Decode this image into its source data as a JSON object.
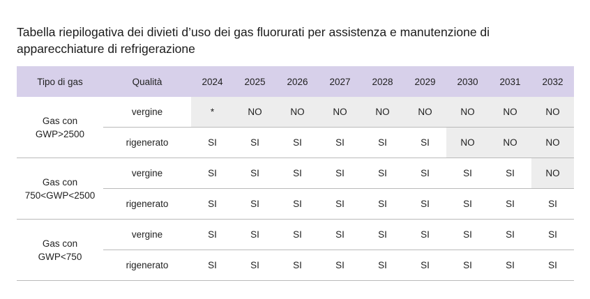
{
  "title_line1": "Tabella riepilogativa dei divieti d’uso dei gas fluorurati per assistenza e manutenzione di",
  "title_line2": "apparecchiature di refrigerazione",
  "header": {
    "type": "Tipo di gas",
    "quality": "Qualità",
    "years": [
      "2024",
      "2025",
      "2026",
      "2027",
      "2028",
      "2029",
      "2030",
      "2031",
      "2032"
    ]
  },
  "groups": [
    {
      "type_line1": "Gas con",
      "type_line2": "GWP>2500",
      "rows": [
        {
          "quality": "vergine",
          "values": [
            "*",
            "NO",
            "NO",
            "NO",
            "NO",
            "NO",
            "NO",
            "NO",
            "NO"
          ]
        },
        {
          "quality": "rigenerato",
          "values": [
            "SI",
            "SI",
            "SI",
            "SI",
            "SI",
            "SI",
            "NO",
            "NO",
            "NO"
          ]
        }
      ]
    },
    {
      "type_line1": "Gas con",
      "type_line2": "750<GWP<2500",
      "rows": [
        {
          "quality": "vergine",
          "values": [
            "SI",
            "SI",
            "SI",
            "SI",
            "SI",
            "SI",
            "SI",
            "SI",
            "NO"
          ]
        },
        {
          "quality": "rigenerato",
          "values": [
            "SI",
            "SI",
            "SI",
            "SI",
            "SI",
            "SI",
            "SI",
            "SI",
            "SI"
          ]
        }
      ]
    },
    {
      "type_line1": "Gas con",
      "type_line2": "GWP<750",
      "rows": [
        {
          "quality": "vergine",
          "values": [
            "SI",
            "SI",
            "SI",
            "SI",
            "SI",
            "SI",
            "SI",
            "SI",
            "SI"
          ]
        },
        {
          "quality": "rigenerato",
          "values": [
            "SI",
            "SI",
            "SI",
            "SI",
            "SI",
            "SI",
            "SI",
            "SI",
            "SI"
          ]
        }
      ]
    }
  ],
  "colors": {
    "header_bg": "#d7d0ea",
    "shade_bg": "#ededed",
    "rule": "#b9b9b9"
  }
}
